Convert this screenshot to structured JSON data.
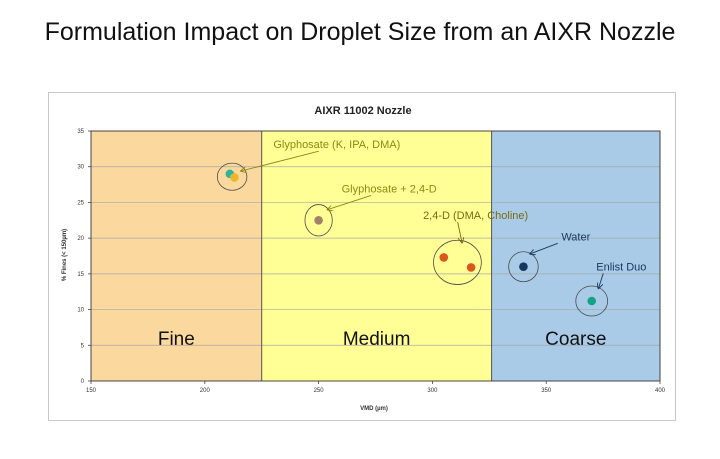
{
  "slide": {
    "title": "Formulation Impact on Droplet Size from an AIXR Nozzle"
  },
  "chart_data": {
    "type": "scatter",
    "title": "AIXR 11002 Nozzle",
    "xlabel": "VMD (µm)",
    "ylabel": "% Fines (< 150µm)",
    "xlim": [
      150,
      400
    ],
    "ylim": [
      0,
      35
    ],
    "x_ticks": [
      "150",
      "200",
      "250",
      "300",
      "350",
      "400"
    ],
    "y_ticks": [
      "0",
      "5",
      "10",
      "15",
      "20",
      "25",
      "30",
      "35"
    ],
    "grid": true,
    "zones": [
      {
        "label": "Fine",
        "x_start": 150,
        "x_end": 225,
        "color": "#fbd99e"
      },
      {
        "label": "Medium",
        "x_start": 225,
        "x_end": 326,
        "color": "#ffff96"
      },
      {
        "label": "Coarse",
        "x_start": 326,
        "x_end": 400,
        "color": "#a9cbe8"
      }
    ],
    "points": [
      {
        "x": 211,
        "y": 29.0,
        "color": "#2eb3a0"
      },
      {
        "x": 213,
        "y": 28.5,
        "color": "#e8b82a"
      },
      {
        "x": 250,
        "y": 22.5,
        "color": "#a08266"
      },
      {
        "x": 305,
        "y": 17.3,
        "color": "#d9571c"
      },
      {
        "x": 317,
        "y": 15.9,
        "color": "#d9571c"
      },
      {
        "x": 340,
        "y": 16.0,
        "color": "#17375e"
      },
      {
        "x": 370,
        "y": 11.2,
        "color": "#12a383"
      }
    ],
    "annotations": [
      {
        "text": "Glyphosate (K, IPA, DMA)",
        "color": "#8a8a12",
        "circle_center": [
          212,
          28.6
        ],
        "circle_r": [
          6.5,
          1.9
        ],
        "text_at": [
          258,
          32.6
        ],
        "arrow_to": [
          216,
          29.4
        ]
      },
      {
        "text": "Glyphosate + 2,4-D",
        "color": "#8a8a12",
        "circle_center": [
          250,
          22.5
        ],
        "circle_r": [
          6,
          2.2
        ],
        "text_at": [
          281,
          26.4
        ],
        "arrow_to": [
          254,
          24.0
        ]
      },
      {
        "text": "2,4-D (DMA, Choline)",
        "color": "#7a6a10",
        "circle_center": [
          311,
          16.6
        ],
        "circle_r": [
          10.5,
          3.1
        ],
        "text_at": [
          319,
          22.7
        ],
        "arrow_to": [
          313,
          19.4
        ]
      },
      {
        "text": "Water",
        "color": "#17375e",
        "circle_center": [
          340,
          16.0
        ],
        "circle_r": [
          6.5,
          2.1
        ],
        "text_at": [
          363,
          19.7
        ],
        "arrow_to": [
          343,
          17.8
        ]
      },
      {
        "text": "Enlist Duo",
        "color": "#17375e",
        "circle_center": [
          370,
          11.2
        ],
        "circle_r": [
          7,
          2.1
        ],
        "text_at": [
          383,
          15.5
        ],
        "arrow_to": [
          373,
          13.0
        ]
      }
    ]
  }
}
